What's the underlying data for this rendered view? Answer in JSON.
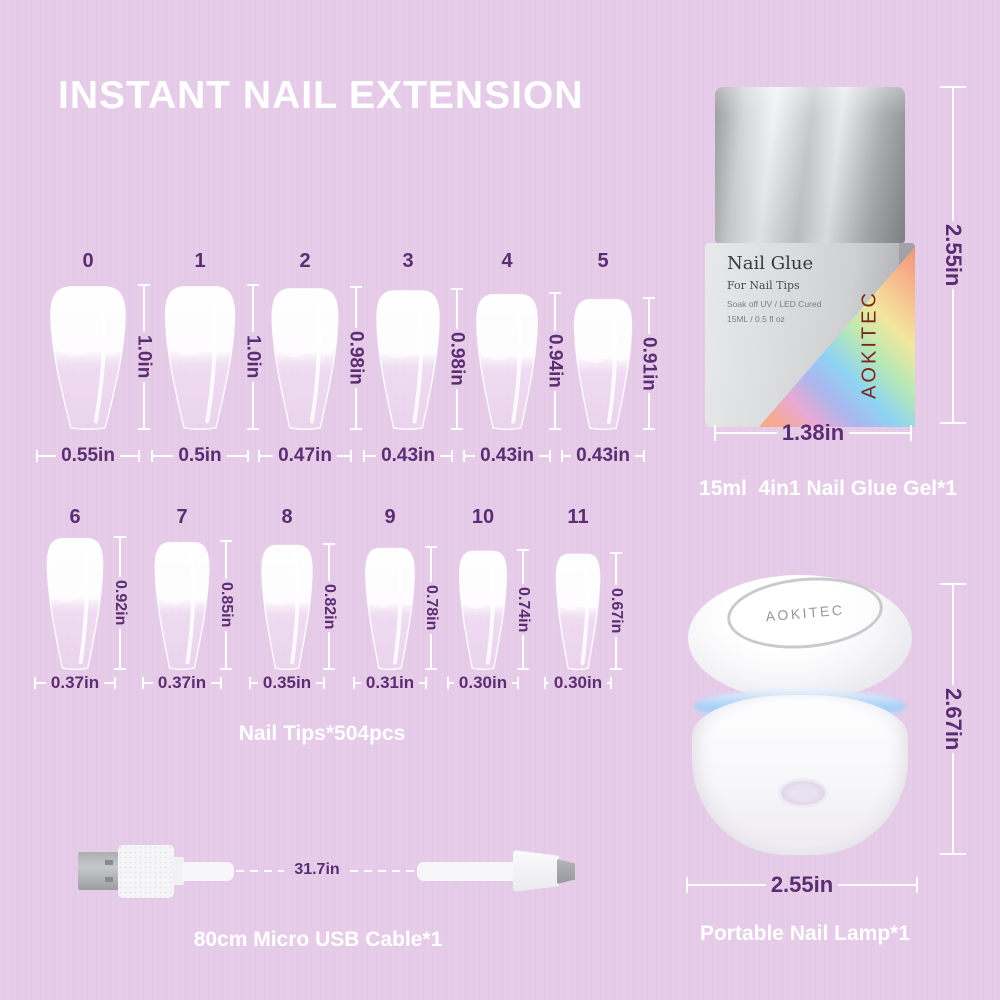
{
  "title": "INSTANT NAIL EXTENSION",
  "colors": {
    "background": "#e5cbe8",
    "dimension_text": "#5c2d72",
    "caption_text": "#ffffff",
    "holo_brand_text": "#78281c",
    "lamp_glow": "#a5cff7"
  },
  "nails": {
    "caption": "Nail Tips*504pcs",
    "row1": [
      {
        "label": "0",
        "height": "1.0in",
        "width": "0.55in"
      },
      {
        "label": "1",
        "height": "1.0in",
        "width": "0.5in"
      },
      {
        "label": "2",
        "height": "0.98in",
        "width": "0.47in"
      },
      {
        "label": "3",
        "height": "0.98in",
        "width": "0.43in"
      },
      {
        "label": "4",
        "height": "0.94in",
        "width": "0.43in"
      },
      {
        "label": "5",
        "height": "0.91in",
        "width": "0.43in"
      }
    ],
    "row2": [
      {
        "label": "6",
        "height": "0.92in",
        "width": "0.37in"
      },
      {
        "label": "7",
        "height": "0.85in",
        "width": "0.37in"
      },
      {
        "label": "8",
        "height": "0.82in",
        "width": "0.35in"
      },
      {
        "label": "9",
        "height": "0.78in",
        "width": "0.31in"
      },
      {
        "label": "10",
        "height": "0.74in",
        "width": "0.30in"
      },
      {
        "label": "11",
        "height": "0.67in",
        "width": "0.30in"
      }
    ]
  },
  "glue": {
    "name": "Nail Glue",
    "subtitle": "For Nail Tips",
    "line3": "Soak off UV / LED Cured",
    "line4": "15ML / 0.5 fl oz",
    "brand_vertical": "AOKITEC",
    "height_label": "2.55in",
    "width_label": "1.38in",
    "caption": "15ml  4in1 Nail Glue Gel*1"
  },
  "lamp": {
    "brand": "AOKITEC",
    "height_label": "2.67in",
    "width_label": "2.55in",
    "caption": "Portable Nail Lamp*1"
  },
  "cable": {
    "length_label": "31.7in",
    "caption": "80cm Micro USB Cable*1"
  }
}
